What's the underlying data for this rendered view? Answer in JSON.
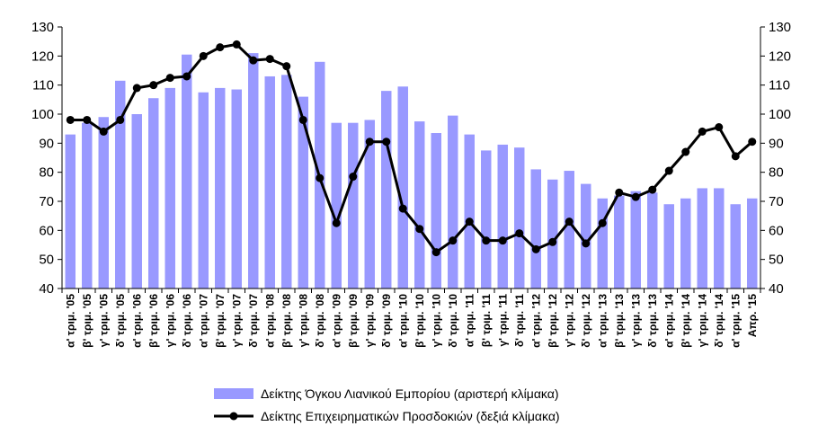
{
  "chart_data": {
    "type": "bar+line",
    "categories": [
      "α' τριμ. '05",
      "β' τριμ. '05",
      "γ' τριμ. '05",
      "δ' τριμ. '05",
      "α' τριμ. '06",
      "β' τριμ. '06",
      "γ' τριμ. '06",
      "δ' τριμ. '06",
      "α' τριμ. '07",
      "β' τριμ. '07",
      "γ' τριμ. '07",
      "δ' τριμ. '07",
      "α' τριμ. '08",
      "β' τριμ. '08",
      "γ' τριμ. '08",
      "δ' τριμ. '08",
      "α' τριμ. '09",
      "β' τριμ. '09",
      "γ' τριμ. '09",
      "δ' τριμ. '09",
      "α' τριμ. '10",
      "β' τριμ. '10",
      "γ' τριμ. '10",
      "δ' τριμ. '10",
      "α' τριμ. '11",
      "β' τριμ. '11",
      "γ' τριμ. '11",
      "δ' τριμ. '11",
      "α' τριμ. '12",
      "β' τριμ. '12",
      "γ' τριμ. '12",
      "δ' τριμ. '12",
      "α' τριμ. '13",
      "β' τριμ. '13",
      "γ' τριμ. '13",
      "δ' τριμ. '13",
      "α' τριμ. '14",
      "β' τριμ. '14",
      "γ' τριμ. '14",
      "δ' τριμ. '14",
      "α' τριμ. '15",
      "Απρ. '15"
    ],
    "series": [
      {
        "name": "Δείκτης Όγκου Λιανικού Εμπορίου (αριστερή κλίμακα)",
        "type": "bar",
        "axis": "left",
        "values": [
          93,
          97,
          99,
          111.5,
          100,
          105.5,
          109,
          120.5,
          107.5,
          109,
          108.5,
          121,
          113,
          113.5,
          106,
          118,
          97,
          97,
          98,
          108,
          109.5,
          97.5,
          93.5,
          99.5,
          93,
          87.5,
          89.5,
          88.5,
          81,
          77.5,
          80.5,
          76,
          71,
          72,
          73.5,
          73,
          69,
          71,
          74.5,
          74.5,
          69,
          71
        ]
      },
      {
        "name": "Δείκτης Επιχειρηματικών Προσδοκιών (δεξιά κλίμακα)",
        "type": "line",
        "axis": "right",
        "values": [
          98,
          98,
          94,
          98,
          109,
          110,
          112.5,
          113,
          120,
          123,
          124,
          118.5,
          119,
          116.5,
          98,
          78,
          62.5,
          78.5,
          90.5,
          90.5,
          67.5,
          60.5,
          52.5,
          56.5,
          63,
          56.5,
          56.5,
          59,
          53.5,
          56,
          63,
          55.5,
          62.5,
          73,
          71.5,
          74,
          80.5,
          87,
          94,
          95.5,
          85.5,
          90.5
        ]
      }
    ],
    "y_left": {
      "min": 40,
      "max": 130,
      "step": 10,
      "ticks": [
        "40",
        "50",
        "60",
        "70",
        "80",
        "90",
        "100",
        "110",
        "120",
        "130"
      ]
    },
    "y_right": {
      "min": 40,
      "max": 130,
      "step": 10,
      "ticks": [
        "40",
        "50",
        "60",
        "70",
        "80",
        "90",
        "100",
        "110",
        "120",
        "130"
      ]
    },
    "grid": false,
    "legend_position": "bottom",
    "colors": {
      "bar": "#9999ff",
      "line": "#000000",
      "axis": "#000000"
    }
  }
}
